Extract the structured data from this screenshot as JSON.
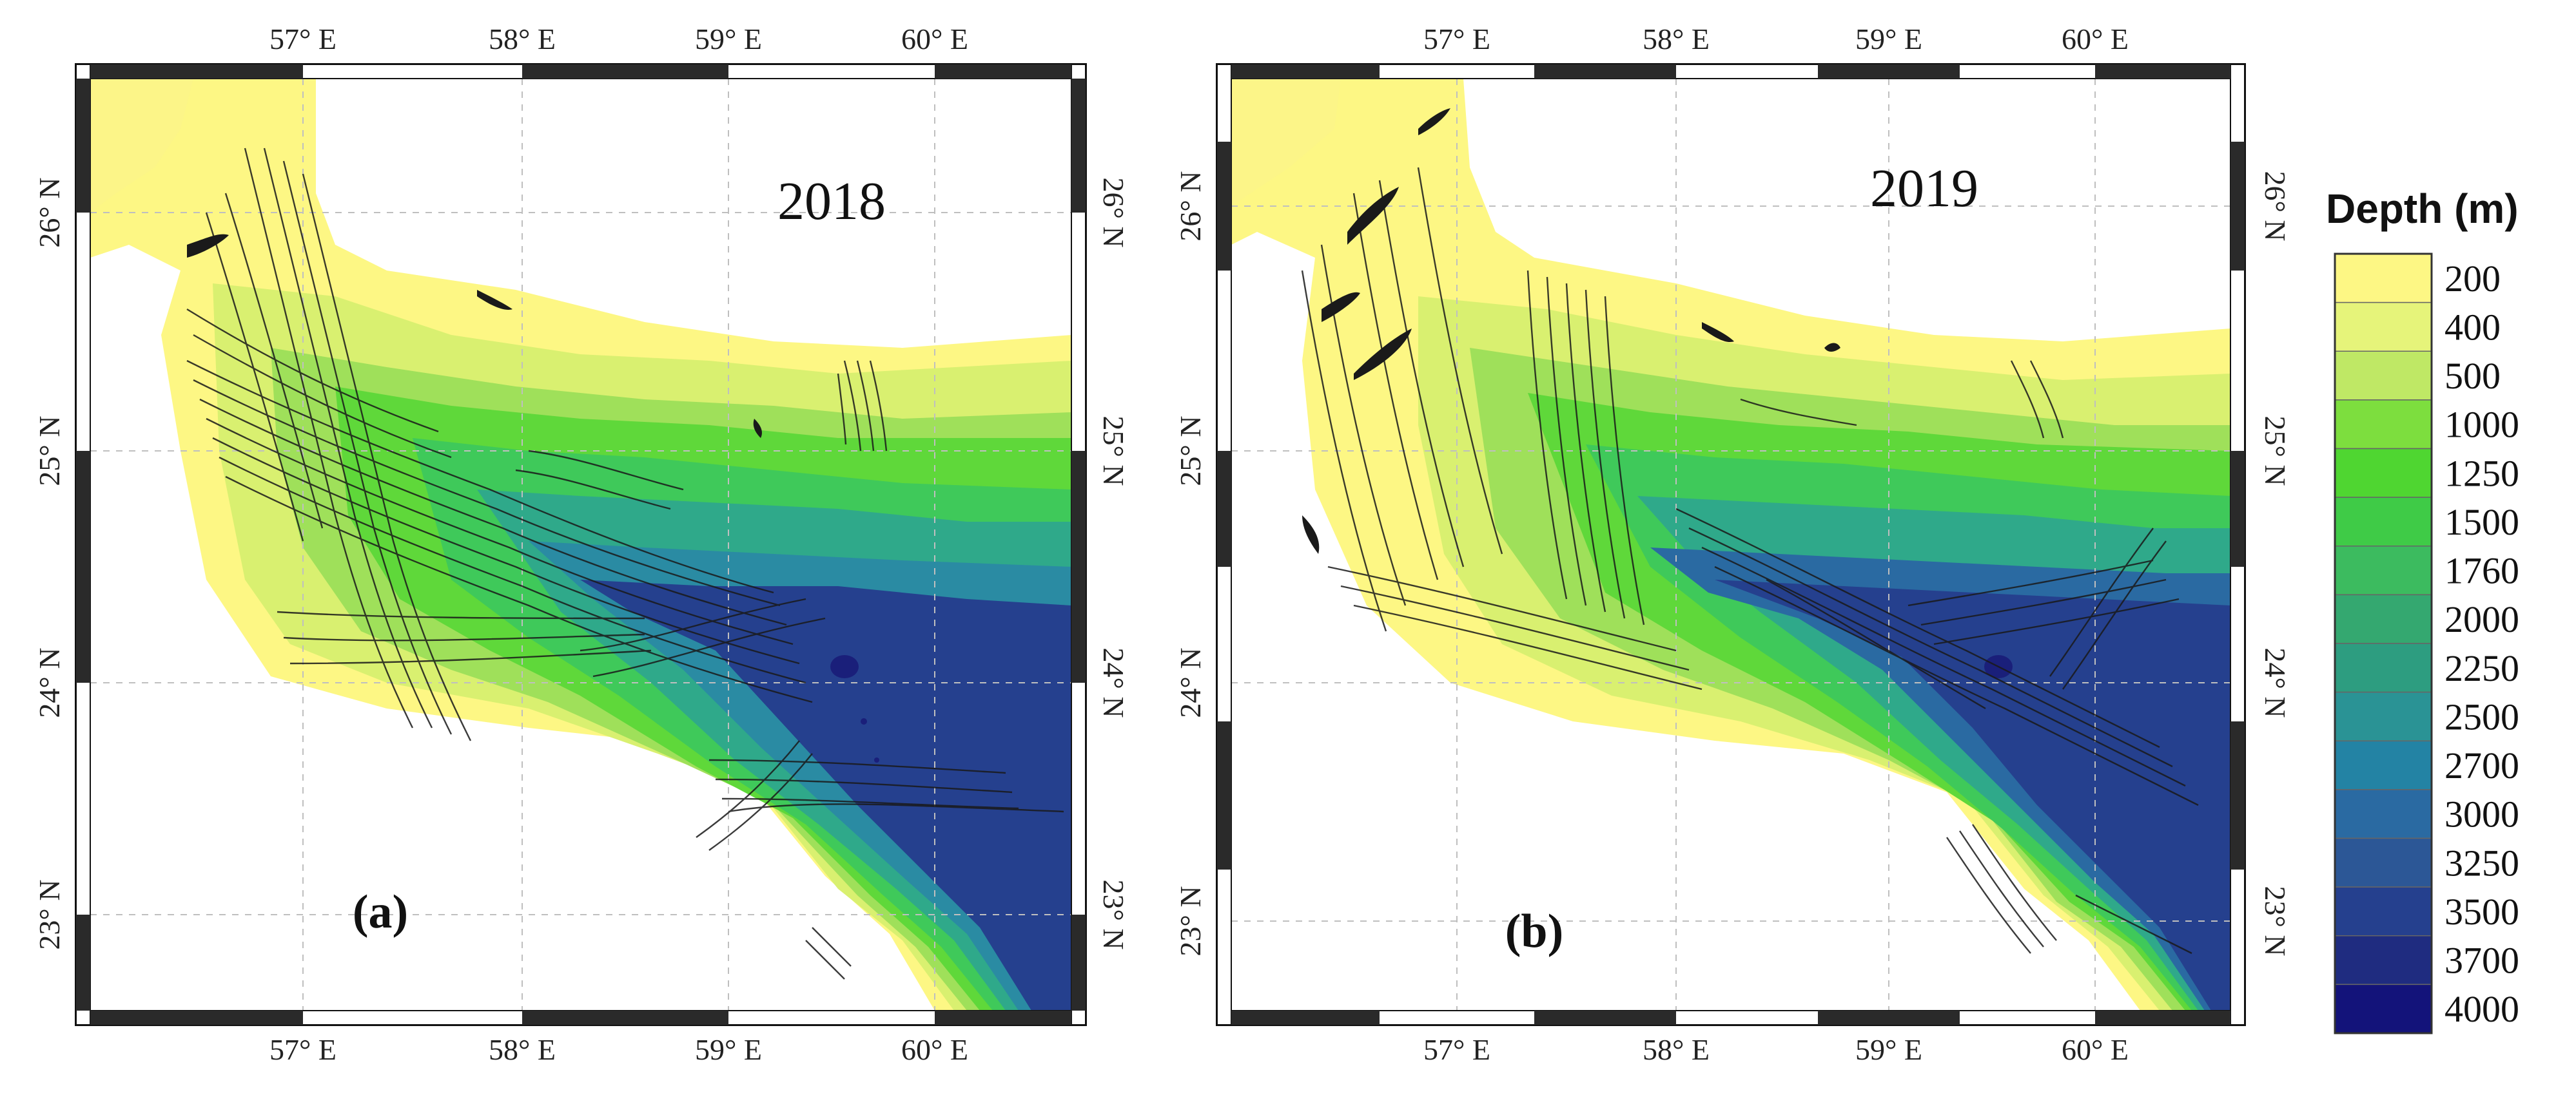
{
  "figure": {
    "panels": [
      {
        "id": "a",
        "year": "2018",
        "tag": "(a)",
        "lon_ticks": [
          "57° E",
          "58° E",
          "59° E",
          "60° E"
        ],
        "lat_ticks": [
          "23° N",
          "24° N",
          "25° N",
          "26° N"
        ]
      },
      {
        "id": "b",
        "year": "2019",
        "tag": "(b)",
        "lon_ticks": [
          "57° E",
          "58° E",
          "59° E",
          "60° E"
        ],
        "lat_ticks": [
          "23° N",
          "24° N",
          "25° N",
          "26° N"
        ]
      }
    ],
    "legend": {
      "title": "Depth (m)",
      "levels": [
        "200",
        "400",
        "500",
        "1000",
        "1250",
        "1500",
        "1760",
        "2000",
        "2250",
        "2500",
        "2700",
        "3000",
        "3250",
        "3500",
        "3700",
        "4000"
      ],
      "colors": [
        "#fdf784",
        "#e6f47a",
        "#bfe865",
        "#7dde3e",
        "#4fd631",
        "#3fcb47",
        "#3cbb5f",
        "#34a870",
        "#2d9d80",
        "#2a9395",
        "#2383a4",
        "#2a6aa2",
        "#2c5796",
        "#25408e",
        "#1f2c80",
        "#13137a"
      ]
    }
  }
}
